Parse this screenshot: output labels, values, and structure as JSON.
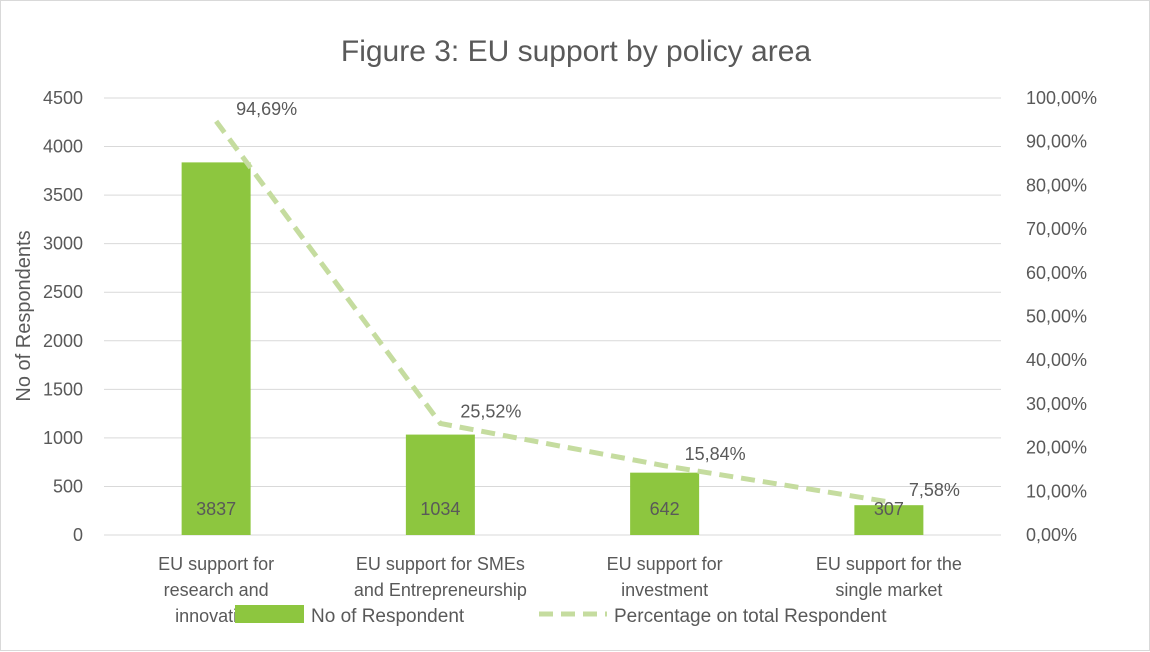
{
  "chart_data": {
    "type": "bar",
    "title": "Figure 3: EU support by policy area",
    "ylabel": "No of Respondents",
    "ylabel_right": "",
    "categories": [
      [
        "EU support for",
        "research and",
        "innovation"
      ],
      [
        "EU support for SMEs",
        "and Entrepreneurship"
      ],
      [
        "EU support for",
        "investment"
      ],
      [
        "EU support for the",
        "single market"
      ]
    ],
    "series": [
      {
        "name": "No of Respondent",
        "type": "bar",
        "axis": "left",
        "color": "#8dc63f",
        "values": [
          3837,
          1034,
          642,
          307
        ],
        "labels": [
          "3837",
          "1034",
          "642",
          "307"
        ]
      },
      {
        "name": "Percentage on total Respondent",
        "type": "line",
        "style": "dashed",
        "axis": "right",
        "color": "#c5dc9f",
        "values": [
          94.69,
          25.52,
          15.84,
          7.58
        ],
        "labels": [
          "94,69%",
          "25,52%",
          "15,84%",
          "7,58%"
        ]
      }
    ],
    "ylim": [
      0,
      4500
    ],
    "yticks": [
      0,
      500,
      1000,
      1500,
      2000,
      2500,
      3000,
      3500,
      4000,
      4500
    ],
    "ytick_labels": [
      "0",
      "500",
      "1000",
      "1500",
      "2000",
      "2500",
      "3000",
      "3500",
      "4000",
      "4500"
    ],
    "y2lim": [
      0,
      100
    ],
    "y2ticks": [
      0,
      10,
      20,
      30,
      40,
      50,
      60,
      70,
      80,
      90,
      100
    ],
    "y2tick_labels": [
      "0,00%",
      "10,00%",
      "20,00%",
      "30,00%",
      "40,00%",
      "50,00%",
      "60,00%",
      "70,00%",
      "80,00%",
      "90,00%",
      "100,00%"
    ],
    "grid": true,
    "legend_position": "bottom"
  }
}
